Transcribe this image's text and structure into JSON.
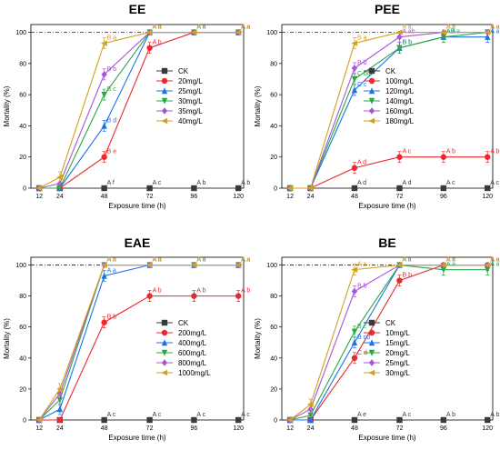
{
  "chart_data": [
    {
      "type": "line",
      "title": "EE",
      "xlabel": "Exposure time (h)",
      "ylabel": "Mortality (%)",
      "x": [
        12,
        24,
        48,
        72,
        96,
        120
      ],
      "ylim": [
        0,
        105
      ],
      "yticks": [
        0,
        20,
        40,
        60,
        80,
        100
      ],
      "reference_line": 100,
      "legend_position": "right",
      "series": [
        {
          "name": "CK",
          "color": "#3a3a3a",
          "marker": "square",
          "values": [
            0,
            0,
            0,
            0,
            0,
            0
          ],
          "labels": [
            "",
            "",
            "A f",
            "A c",
            "A b",
            "A b"
          ]
        },
        {
          "name": "20mg/L",
          "color": "#e8292e",
          "marker": "circle",
          "values": [
            0,
            0,
            20,
            90,
            100,
            100
          ],
          "labels": [
            "",
            "",
            "B e",
            "A b",
            "A a",
            "A a"
          ]
        },
        {
          "name": "25mg/L",
          "color": "#1a73e8",
          "marker": "triangle-up",
          "values": [
            0,
            0,
            40,
            100,
            100,
            100
          ],
          "labels": [
            "",
            "",
            "B d",
            "A a",
            "A a",
            "A a"
          ]
        },
        {
          "name": "30mg/L",
          "color": "#28a745",
          "marker": "triangle-down",
          "values": [
            0,
            0,
            60,
            100,
            100,
            100
          ],
          "labels": [
            "",
            "",
            "B c",
            "A a",
            "A a",
            "A a"
          ]
        },
        {
          "name": "35mg/L",
          "color": "#a855d6",
          "marker": "diamond",
          "values": [
            0,
            3,
            73,
            100,
            100,
            100
          ],
          "labels": [
            "",
            "",
            "B b",
            "A a",
            "A a",
            "A a"
          ]
        },
        {
          "name": "40mg/L",
          "color": "#d4a020",
          "marker": "triangle-left",
          "values": [
            0,
            7,
            93,
            100,
            100,
            100
          ],
          "labels": [
            "",
            "",
            "B a",
            "A a",
            "A a",
            "A a"
          ]
        }
      ]
    },
    {
      "type": "line",
      "title": "PEE",
      "xlabel": "Exposure time (h)",
      "ylabel": "Mortality (%)",
      "x": [
        12,
        24,
        48,
        72,
        96,
        120
      ],
      "ylim": [
        0,
        105
      ],
      "yticks": [
        0,
        20,
        40,
        60,
        80,
        100
      ],
      "reference_line": 100,
      "legend_position": "right",
      "series": [
        {
          "name": "CK",
          "color": "#3a3a3a",
          "marker": "square",
          "values": [
            0,
            0,
            0,
            0,
            0,
            0
          ],
          "labels": [
            "",
            "",
            "A d",
            "A d",
            "A c",
            "A c"
          ]
        },
        {
          "name": "100mg/L",
          "color": "#e8292e",
          "marker": "circle",
          "values": [
            0,
            0,
            13,
            20,
            20,
            20
          ],
          "labels": [
            "",
            "",
            "A d",
            "A c",
            "A b",
            "A b"
          ]
        },
        {
          "name": "120mg/L",
          "color": "#1a73e8",
          "marker": "triangle-up",
          "values": [
            0,
            0,
            63,
            90,
            97,
            97
          ],
          "labels": [
            "",
            "",
            "C c",
            "B b",
            "A a",
            "A a"
          ]
        },
        {
          "name": "140mg/L",
          "color": "#28a745",
          "marker": "triangle-down",
          "values": [
            0,
            0,
            70,
            90,
            97,
            100
          ],
          "labels": [
            "",
            "",
            "C bc",
            "B b",
            "AB a",
            "A a"
          ]
        },
        {
          "name": "160mg/L",
          "color": "#a855d6",
          "marker": "diamond",
          "values": [
            0,
            0,
            77,
            97,
            100,
            100
          ],
          "labels": [
            "",
            "",
            "B b",
            "A ab",
            "A a",
            "A a"
          ]
        },
        {
          "name": "180mg/L",
          "color": "#d4a020",
          "marker": "triangle-left",
          "values": [
            0,
            0,
            93,
            100,
            100,
            100
          ],
          "labels": [
            "",
            "",
            "B a",
            "A a",
            "A a",
            "A a"
          ]
        }
      ]
    },
    {
      "type": "line",
      "title": "EAE",
      "xlabel": "Exposure time (h)",
      "ylabel": "Mortality (%)",
      "x": [
        12,
        24,
        48,
        72,
        96,
        120
      ],
      "ylim": [
        0,
        105
      ],
      "yticks": [
        0,
        20,
        40,
        60,
        80,
        100
      ],
      "reference_line": 100,
      "legend_position": "right",
      "series": [
        {
          "name": "CK",
          "color": "#3a3a3a",
          "marker": "square",
          "values": [
            0,
            0,
            0,
            0,
            0,
            0
          ],
          "labels": [
            "",
            "",
            "A c",
            "A c",
            "A c",
            "A c"
          ]
        },
        {
          "name": "200mg/L",
          "color": "#e8292e",
          "marker": "circle",
          "values": [
            0,
            0,
            63,
            80,
            80,
            80
          ],
          "labels": [
            "",
            "",
            "B b",
            "A b",
            "A b",
            "A b"
          ]
        },
        {
          "name": "400mg/L",
          "color": "#1a73e8",
          "marker": "triangle-up",
          "values": [
            0,
            7,
            93,
            100,
            100,
            100
          ],
          "labels": [
            "",
            "",
            "A a",
            "A a",
            "A a",
            "A a"
          ]
        },
        {
          "name": "600mg/L",
          "color": "#28a745",
          "marker": "triangle-down",
          "values": [
            0,
            13,
            100,
            100,
            100,
            100
          ],
          "labels": [
            "",
            "",
            "A a",
            "A a",
            "A a",
            "A a"
          ]
        },
        {
          "name": "800mg/L",
          "color": "#a855d6",
          "marker": "diamond",
          "values": [
            0,
            17,
            100,
            100,
            100,
            100
          ],
          "labels": [
            "",
            "",
            "A a",
            "A a",
            "A a",
            "A a"
          ]
        },
        {
          "name": "1000mg/L",
          "color": "#d4a020",
          "marker": "triangle-left",
          "values": [
            0,
            20,
            100,
            100,
            100,
            100
          ],
          "labels": [
            "",
            "",
            "A a",
            "A a",
            "A a",
            "A a"
          ]
        }
      ]
    },
    {
      "type": "line",
      "title": "BE",
      "xlabel": "Exposure time (h)",
      "ylabel": "Mortality (%)",
      "x": [
        12,
        24,
        48,
        72,
        96,
        120
      ],
      "ylim": [
        0,
        105
      ],
      "yticks": [
        0,
        20,
        40,
        60,
        80,
        100
      ],
      "reference_line": 100,
      "legend_position": "right",
      "series": [
        {
          "name": "CK",
          "color": "#3a3a3a",
          "marker": "square",
          "values": [
            0,
            0,
            0,
            0,
            0,
            0
          ],
          "labels": [
            "",
            "",
            "A e",
            "A c",
            "A b",
            "A b"
          ]
        },
        {
          "name": "10mg/L",
          "color": "#e8292e",
          "marker": "circle",
          "values": [
            0,
            0,
            40,
            90,
            100,
            100
          ],
          "labels": [
            "",
            "",
            "C d",
            "B b",
            "A a",
            "A a"
          ]
        },
        {
          "name": "15mg/L",
          "color": "#1a73e8",
          "marker": "triangle-up",
          "values": [
            0,
            0,
            50,
            100,
            100,
            100
          ],
          "labels": [
            "",
            "",
            "B cd",
            "A a",
            "A a",
            "A a"
          ]
        },
        {
          "name": "20mg/L",
          "color": "#28a745",
          "marker": "triangle-down",
          "values": [
            0,
            3,
            57,
            100,
            97,
            97
          ],
          "labels": [
            "",
            "",
            "B c",
            "A a",
            "A a",
            "A a"
          ]
        },
        {
          "name": "25mg/L",
          "color": "#a855d6",
          "marker": "diamond",
          "values": [
            0,
            7,
            83,
            100,
            100,
            100
          ],
          "labels": [
            "",
            "",
            "B b",
            "A a",
            "A a",
            "A a"
          ]
        },
        {
          "name": "30mg/L",
          "color": "#d4a020",
          "marker": "triangle-left",
          "values": [
            0,
            10,
            97,
            100,
            100,
            100
          ],
          "labels": [
            "",
            "",
            "A a",
            "A a",
            "A a",
            "A a"
          ]
        }
      ]
    }
  ]
}
